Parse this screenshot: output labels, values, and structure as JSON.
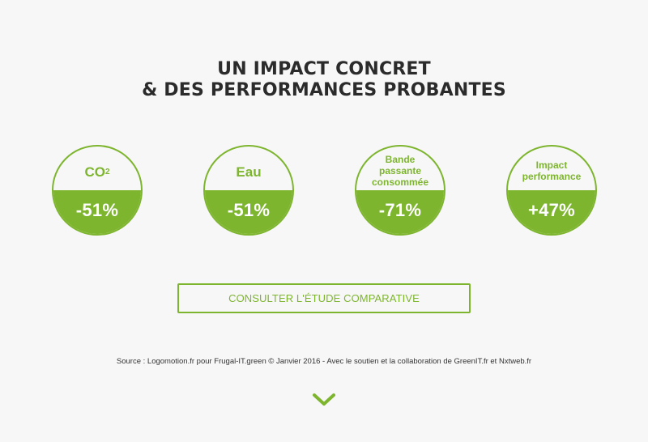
{
  "headline": {
    "line1": "UN IMPACT CONCRET",
    "line2": "& DES PERFORMANCES PROBANTES"
  },
  "stats": [
    {
      "label": "CO",
      "label_sub": "2",
      "value": "-51%"
    },
    {
      "label": "Eau",
      "value": "-51%"
    },
    {
      "label_lines": [
        "Bande",
        "passante",
        "consommée"
      ],
      "value": "-71%"
    },
    {
      "label_lines": [
        "Impact",
        "performance"
      ],
      "value": "+47%"
    }
  ],
  "cta": {
    "label": "CONSULTER L'ÉTUDE COMPARATIVE"
  },
  "source": "Source : Logomotion.fr pour Frugal-IT.green © Janvier 2016 - Avec le soutien et la collaboration de GreenIT.fr et Nxtweb.fr",
  "colors": {
    "accent": "#7eb52f",
    "background": "#f7f7f7",
    "text": "#2b2b2b"
  },
  "icons": {
    "scroll_down": "chevron-down-icon"
  }
}
